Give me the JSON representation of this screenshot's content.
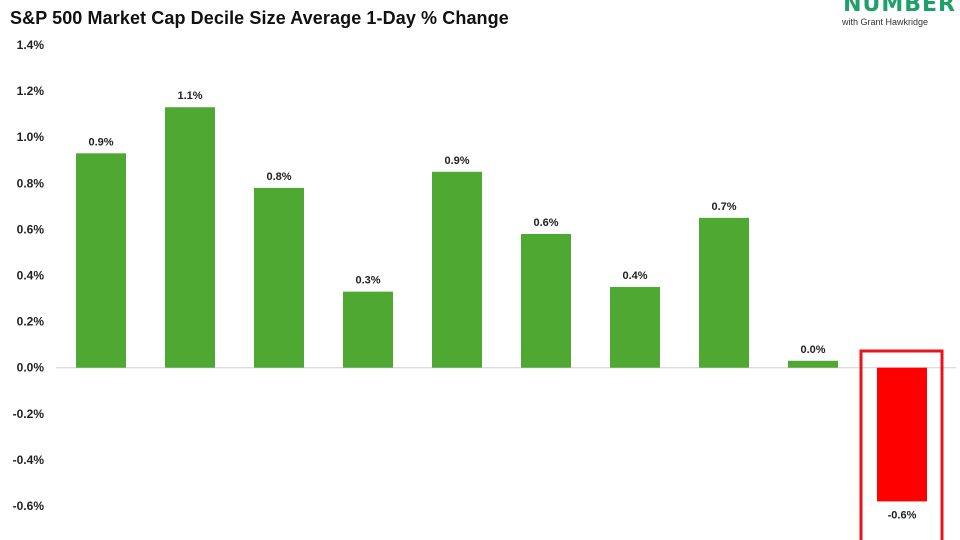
{
  "header": {
    "title": "S&P 500 Market Cap Decile Size Average 1-Day % Change",
    "brand_word": "NUMBER",
    "brand_sub": "with Grant Hawkridge"
  },
  "colors": {
    "positive": "#4ea832",
    "negative": "#ff0000",
    "highlight": "#e8141b",
    "brand": "#1fa06a"
  },
  "chart_data": {
    "type": "bar",
    "title": "S&P 500 Market Cap Decile Size Average 1-Day % Change",
    "xlabel": "",
    "ylabel": "",
    "ylim": [
      -0.6,
      1.4
    ],
    "yticks": [
      1.4,
      1.2,
      1.0,
      0.8,
      0.6,
      0.4,
      0.2,
      0.0,
      -0.2,
      -0.4,
      -0.6
    ],
    "ytick_labels": [
      "1.4%",
      "1.2%",
      "1.0%",
      "0.8%",
      "0.6%",
      "0.4%",
      "0.2%",
      "0.0%",
      "-0.2%",
      "-0.4%",
      "-0.6%"
    ],
    "grid": false,
    "values": [
      0.93,
      1.13,
      0.78,
      0.33,
      0.85,
      0.58,
      0.35,
      0.65,
      0.03,
      -0.58
    ],
    "data_labels": [
      "0.9%",
      "1.1%",
      "0.8%",
      "0.3%",
      "0.9%",
      "0.6%",
      "0.4%",
      "0.7%",
      "0.0%",
      "-0.6%"
    ],
    "highlighted_index": 9
  }
}
